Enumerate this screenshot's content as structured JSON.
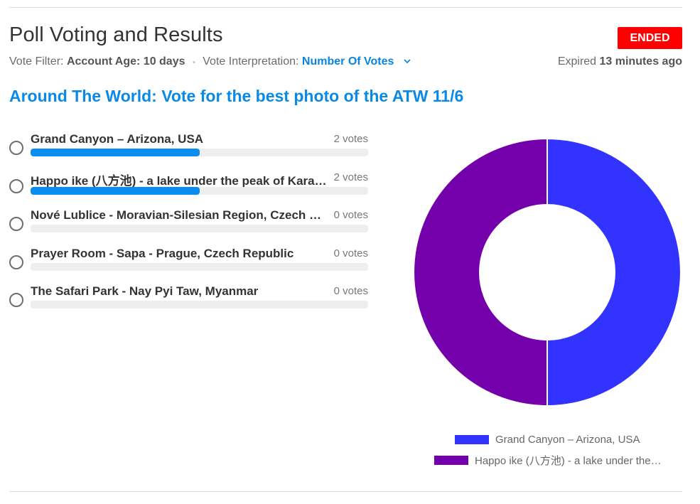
{
  "header": {
    "title": "Poll Voting and Results",
    "status": "ENDED",
    "vote_filter_label": "Vote Filter:",
    "vote_filter_value": "Account Age: 10 days",
    "separator": "•",
    "interpretation_label": "Vote Interpretation:",
    "interpretation_value": "Number Of Votes",
    "expired_prefix": "Expired",
    "expired_value": "13 minutes ago"
  },
  "poll": {
    "title": "Around The World: Vote for the best photo of the ATW 11/6",
    "options": [
      {
        "label": "Grand Canyon – Arizona, USA",
        "votes_text": "2 votes",
        "share": 0.5
      },
      {
        "label": "Happo ike (八方池) - a lake under the peak of Karamatsu-dake",
        "votes_text": "2 votes",
        "share": 0.5
      },
      {
        "label": "Nové Lublice - Moravian-Silesian Region, Czech Republic",
        "votes_text": "0 votes",
        "share": 0
      },
      {
        "label": "Prayer Room - Sapa - Prague, Czech Republic",
        "votes_text": "0 votes",
        "share": 0
      },
      {
        "label": "The Safari Park - Nay Pyi Taw, Myanmar",
        "votes_text": "0 votes",
        "share": 0
      }
    ]
  },
  "chart_data": {
    "type": "pie",
    "donut": true,
    "categories": [
      "Grand Canyon – Arizona, USA",
      "Happo ike (八方池) - a lake under the…"
    ],
    "values": [
      2,
      2
    ],
    "colors": [
      "#3333ff",
      "#7300ab"
    ],
    "legend_position": "bottom"
  },
  "colors": {
    "accent": "#0a8ae6",
    "ended_badge": "#ff0000",
    "bar_fill": "#0b8df0",
    "bar_track": "#eeeeee"
  }
}
